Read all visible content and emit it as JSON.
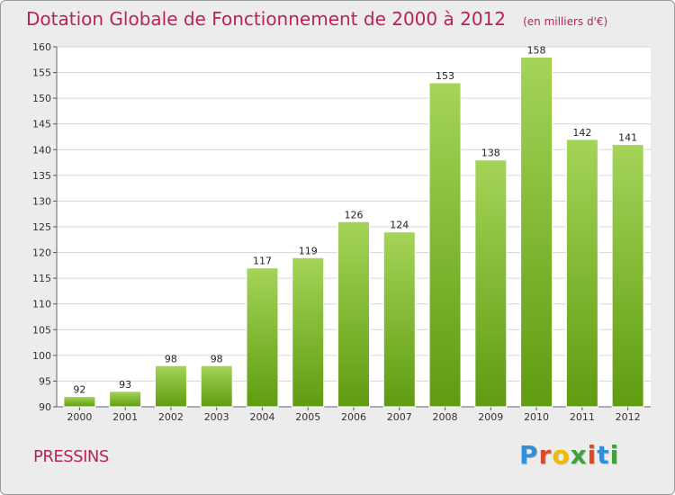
{
  "header": {
    "title": "Dotation Globale de Fonctionnement de 2000 à 2012",
    "subtitle": "(en milliers d'€)"
  },
  "commune": "PRESSINS",
  "logo": {
    "letters": [
      "P",
      "r",
      "o",
      "x",
      "i",
      "t",
      "i"
    ],
    "colors": [
      "#2f8fd8",
      "#e7461e",
      "#f5b800",
      "#3da33a",
      "#e7461e",
      "#2f8fd8",
      "#3da33a"
    ]
  },
  "colors": {
    "accent": "#b8245a",
    "bar_light": "#a4d458",
    "bar_dark": "#5f9c10"
  },
  "chart_data": {
    "type": "bar",
    "title": "Dotation Globale de Fonctionnement de 2000 à 2012",
    "subtitle": "(en milliers d'€)",
    "categories": [
      "2000",
      "2001",
      "2002",
      "2003",
      "2004",
      "2005",
      "2006",
      "2007",
      "2008",
      "2009",
      "2010",
      "2011",
      "2012"
    ],
    "values": [
      92,
      93,
      98,
      98,
      117,
      119,
      126,
      124,
      153,
      138,
      158,
      142,
      141
    ],
    "ylim": [
      90,
      160
    ],
    "yticks": [
      90,
      95,
      100,
      105,
      110,
      115,
      120,
      125,
      130,
      135,
      140,
      145,
      150,
      155,
      160
    ],
    "grid": true,
    "legend": "none"
  }
}
